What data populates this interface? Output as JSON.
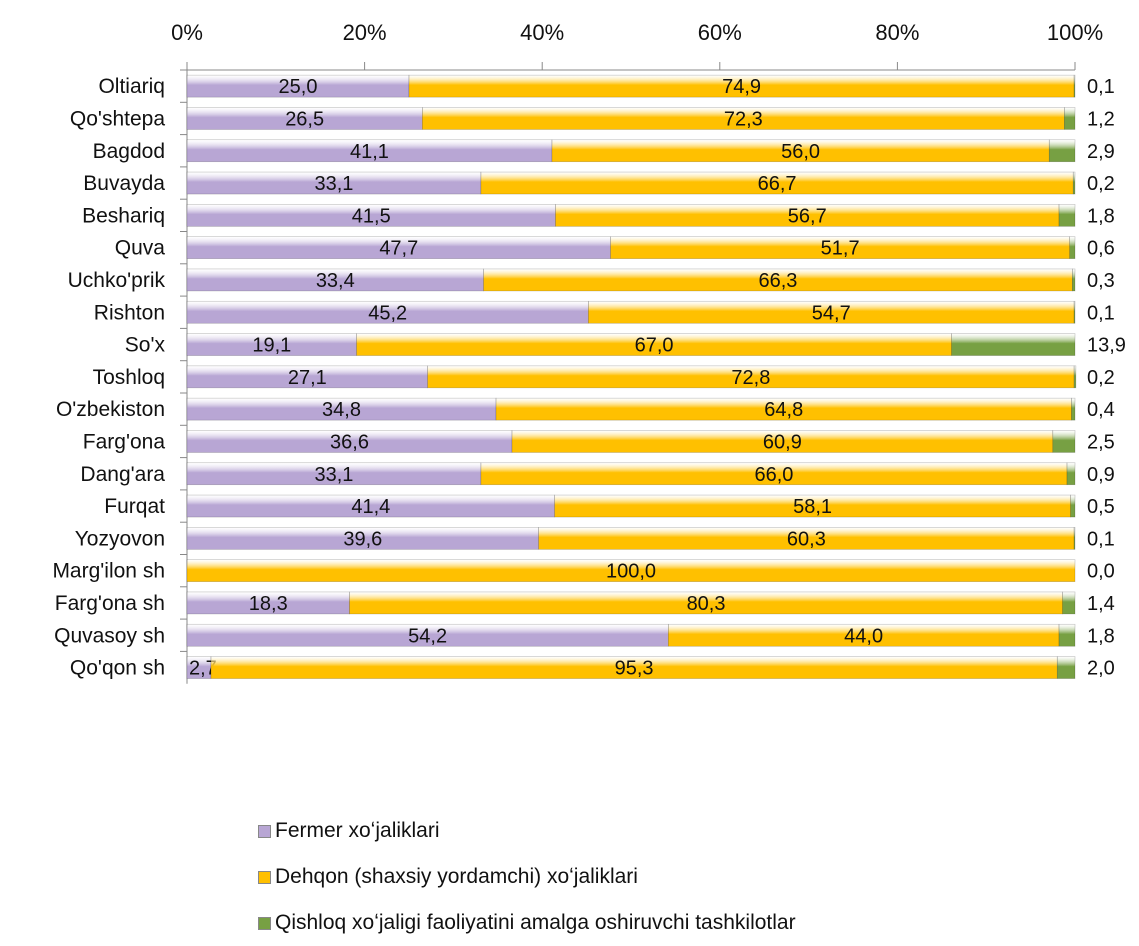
{
  "chart_data": {
    "type": "bar",
    "orientation": "horizontal",
    "stacked": "percent",
    "xlim": [
      0,
      100
    ],
    "x_ticks": [
      "0%",
      "20%",
      "40%",
      "60%",
      "80%",
      "100%"
    ],
    "legend_position": "bottom",
    "grid": false,
    "categories": [
      "Oltiariq",
      "Qo'shtepa",
      "Bagdod",
      "Buvayda",
      "Beshariq",
      "Quva",
      "Uchko'prik",
      "Rishton",
      "So'x",
      "Toshloq",
      "O'zbekiston",
      "Farg'ona",
      "Dang'ara",
      "Furqat",
      "Yozyovon",
      "Marg'ilon sh",
      "Farg'ona sh",
      "Quvasoy sh",
      "Qo'qon sh"
    ],
    "series": [
      {
        "name": "Fermer xoʻjaliklari",
        "color": "#b8a6d4",
        "values": [
          25.0,
          26.5,
          41.1,
          33.1,
          41.5,
          47.7,
          33.4,
          45.2,
          19.1,
          27.1,
          34.8,
          36.6,
          33.1,
          41.4,
          39.6,
          0.0,
          18.3,
          54.2,
          2.7
        ],
        "labels": [
          "25,0",
          "26,5",
          "41,1",
          "33,1",
          "41,5",
          "47,7",
          "33,4",
          "45,2",
          "19,1",
          "27,1",
          "34,8",
          "36,6",
          "33,1",
          "41,4",
          "39,6",
          "",
          "18,3",
          "54,2",
          "2,7"
        ]
      },
      {
        "name": "Dehqon (shaxsiy yordamchi) xoʻjaliklari",
        "color": "#ffc000",
        "values": [
          74.9,
          72.3,
          56.0,
          66.7,
          56.7,
          51.7,
          66.3,
          54.7,
          67.0,
          72.8,
          64.8,
          60.9,
          66.0,
          58.1,
          60.3,
          100.0,
          80.3,
          44.0,
          95.3
        ],
        "labels": [
          "74,9",
          "72,3",
          "56,0",
          "66,7",
          "56,7",
          "51,7",
          "66,3",
          "54,7",
          "67,0",
          "72,8",
          "64,8",
          "60,9",
          "66,0",
          "58,1",
          "60,3",
          "100,0",
          "80,3",
          "44,0",
          "95,3"
        ]
      },
      {
        "name": "Qishloq xoʻjaligi faoliyatini amalga oshiruvchi tashkilotlar",
        "color": "#77a043",
        "values": [
          0.1,
          1.2,
          2.9,
          0.2,
          1.8,
          0.6,
          0.3,
          0.1,
          13.9,
          0.2,
          0.4,
          2.5,
          0.9,
          0.5,
          0.1,
          0.0,
          1.4,
          1.8,
          2.0
        ],
        "labels": [
          "0,1",
          "1,2",
          "2,9",
          "0,2",
          "1,8",
          "0,6",
          "0,3",
          "0,1",
          "13,9",
          "0,2",
          "0,4",
          "2,5",
          "0,9",
          "0,5",
          "0,1",
          "0,0",
          "1,4",
          "1,8",
          "2,0"
        ]
      }
    ]
  }
}
